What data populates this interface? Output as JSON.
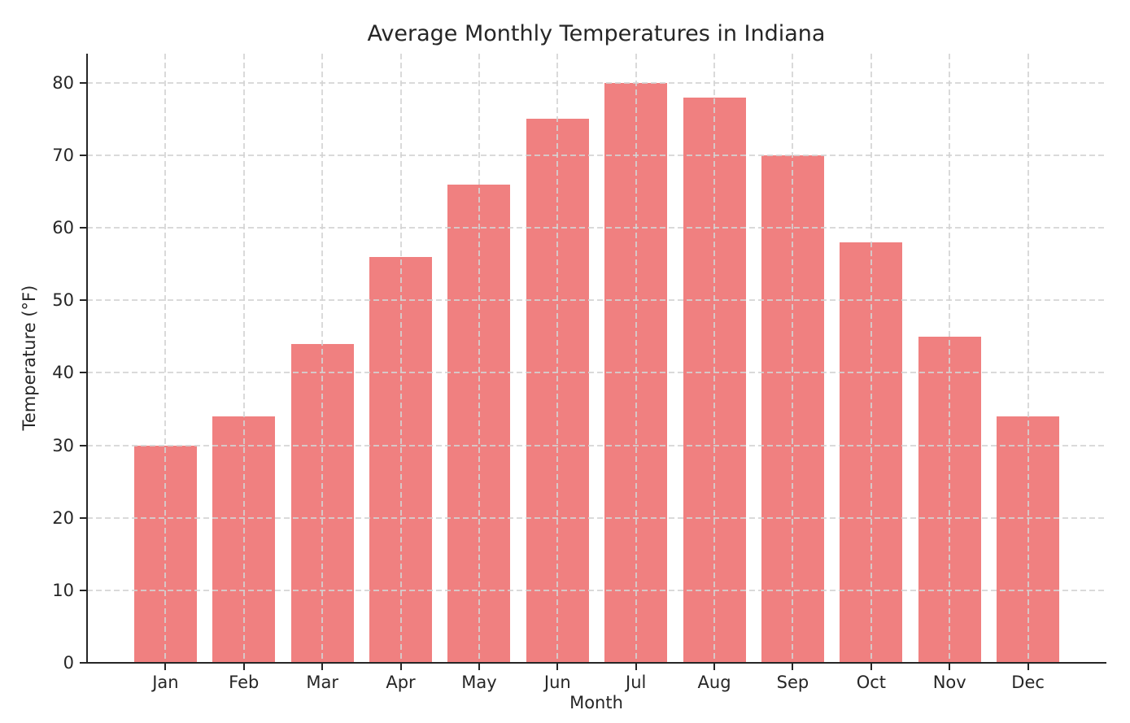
{
  "figure": {
    "title": "Average Monthly Temperatures in Indiana"
  },
  "chart_data": {
    "type": "bar",
    "title": "Average Monthly Temperatures in Indiana",
    "xlabel": "Month",
    "ylabel": "Temperature (°F)",
    "categories": [
      "Jan",
      "Feb",
      "Mar",
      "Apr",
      "May",
      "Jun",
      "Jul",
      "Aug",
      "Sep",
      "Oct",
      "Nov",
      "Dec"
    ],
    "values": [
      30,
      34,
      44,
      56,
      66,
      75,
      80,
      78,
      70,
      58,
      45,
      34
    ],
    "yticks": [
      0,
      10,
      20,
      30,
      40,
      50,
      60,
      70,
      80
    ],
    "ylim": [
      0,
      84
    ],
    "grid": true,
    "grid_style": "dashed",
    "grid_color": "#d3d3d3",
    "legend_position": "none",
    "bar_color": "#f08080",
    "axis_color": "#262626",
    "background_color": "#ffffff",
    "bar_width_fraction": 0.8
  }
}
